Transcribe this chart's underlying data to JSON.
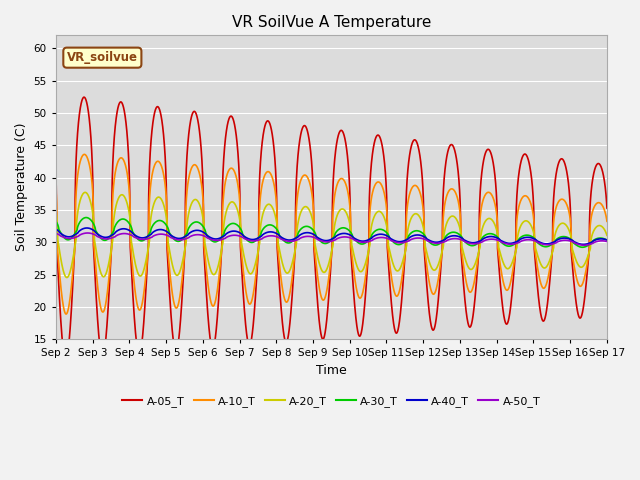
{
  "title": "VR SoilVue A Temperature",
  "xlabel": "Time",
  "ylabel": "Soil Temperature (C)",
  "ylim": [
    15,
    62
  ],
  "yticks": [
    15,
    20,
    25,
    30,
    35,
    40,
    45,
    50,
    55,
    60
  ],
  "annotation": "VR_soilvue",
  "annotation_color": "#8B4513",
  "annotation_bg": "#FFFFCC",
  "annotation_edge": "#8B4513",
  "bg_color": "#DCDCDC",
  "fig_bg": "#F2F2F2",
  "series_order": [
    "A-05_T",
    "A-10_T",
    "A-20_T",
    "A-30_T",
    "A-40_T",
    "A-50_T"
  ],
  "series": {
    "A-05_T": {
      "color": "#CC0000",
      "lw": 1.2
    },
    "A-10_T": {
      "color": "#FF8C00",
      "lw": 1.2
    },
    "A-20_T": {
      "color": "#CCCC00",
      "lw": 1.2
    },
    "A-30_T": {
      "color": "#00CC00",
      "lw": 1.2
    },
    "A-40_T": {
      "color": "#0000CC",
      "lw": 1.2
    },
    "A-50_T": {
      "color": "#9900CC",
      "lw": 1.2
    }
  },
  "xtick_labels": [
    "Sep 2",
    "Sep 3",
    "Sep 4",
    "Sep 5",
    "Sep 6",
    "Sep 7",
    "Sep 8",
    "Sep 9",
    "Sep 10",
    "Sep 11",
    "Sep 12",
    "Sep 13",
    "Sep 14",
    "Sep 15",
    "Sep 16",
    "Sep 17"
  ],
  "grid_color": "#FFFFFF",
  "n_days": 15
}
